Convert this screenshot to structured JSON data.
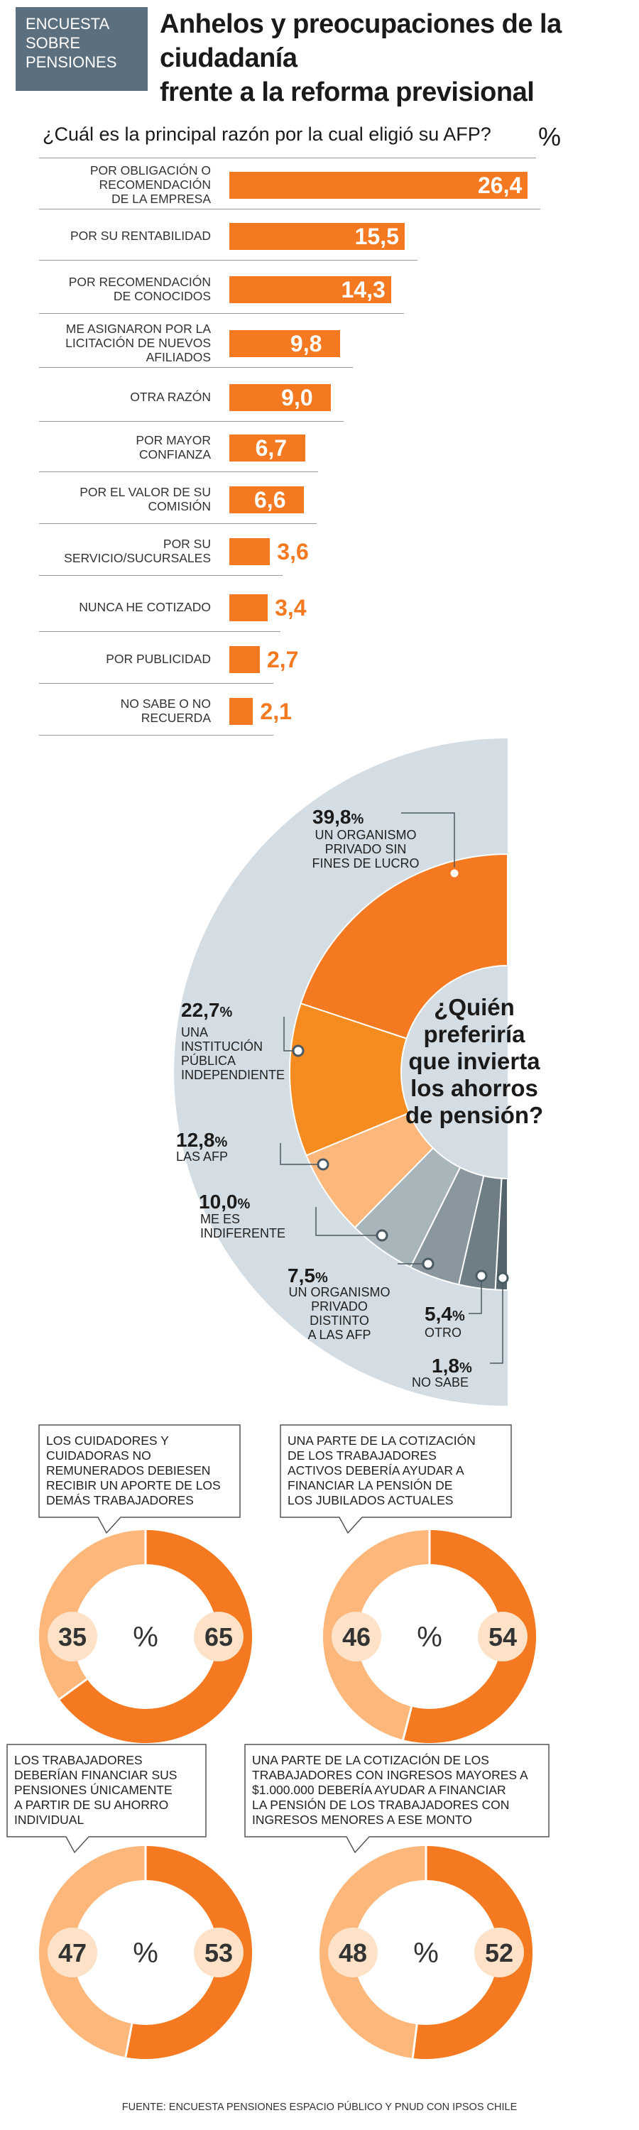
{
  "header": {
    "tag_lines": [
      "ENCUESTA",
      "SOBRE",
      "PENSIONES"
    ],
    "title_lines": [
      "Anhelos y preocupaciones de la ciudadanía",
      "frente a la reforma previsional"
    ]
  },
  "colors": {
    "orange": "#f47920",
    "light_orange": "#fdb77a",
    "mid_orange": "#f68b1f",
    "gray_blue": "#d3dde3",
    "slate": "#5c6f7e"
  },
  "chart_data": [
    {
      "type": "bar",
      "title": "¿Cuál es la principal razón por la cual eligió su AFP?",
      "unit": "%",
      "categories": [
        [
          "POR OBLIGACIÓN O",
          "RECOMENDACIÓN",
          "DE LA EMPRESA"
        ],
        [
          "POR SU RENTABILIDAD"
        ],
        [
          "POR RECOMENDACIÓN",
          "DE CONOCIDOS"
        ],
        [
          "ME ASIGNARON POR LA",
          "LICITACIÓN DE NUEVOS",
          "AFILIADOS"
        ],
        [
          "OTRA RAZÓN"
        ],
        [
          "POR MAYOR",
          "CONFIANZA"
        ],
        [
          "POR EL VALOR DE SU",
          "COMISIÓN"
        ],
        [
          "POR SU",
          "SERVICIO/SUCURSALES"
        ],
        [
          "NUNCA HE COTIZADO"
        ],
        [
          "POR PUBLICIDAD"
        ],
        [
          "NO SABE O NO",
          "RECUERDA"
        ]
      ],
      "values": [
        26.4,
        15.5,
        14.3,
        9.8,
        9.0,
        6.7,
        6.6,
        3.6,
        3.4,
        2.7,
        2.1
      ],
      "value_labels": [
        "26,4",
        "15,5",
        "14,3",
        "9,8",
        "9,0",
        "6,7",
        "6,6",
        "3,6",
        "3,4",
        "2,7",
        "2,1"
      ]
    },
    {
      "type": "pie",
      "title": "¿Quién preferiría que invierta los ahorros de pensión?",
      "title_lines": [
        "¿Quién",
        "preferiría",
        "que invierta",
        "los ahorros",
        "de pensión?"
      ],
      "slices": [
        {
          "value": 39.8,
          "pct_label": "39,8",
          "label_lines": [
            "UN ORGANISMO",
            "PRIVADO SIN",
            "FINES DE LUCRO"
          ],
          "color": "#f47920"
        },
        {
          "value": 22.7,
          "pct_label": "22,7",
          "label_lines": [
            "UNA",
            "INSTITUCIÓN",
            "PÚBLICA",
            "INDEPENDIENTE"
          ],
          "color": "#f68b1f"
        },
        {
          "value": 12.8,
          "pct_label": "12,8",
          "label_lines": [
            "LAS AFP"
          ],
          "color": "#fdb77a"
        },
        {
          "value": 10.0,
          "pct_label": "10,0",
          "label_lines": [
            "ME ES",
            "INDIFERENTE"
          ],
          "color": "#a8b5bb"
        },
        {
          "value": 7.5,
          "pct_label": "7,5",
          "label_lines": [
            "UN ORGANISMO",
            "PRIVADO",
            "DISTINTO",
            "A LAS AFP"
          ],
          "color": "#8a979e"
        },
        {
          "value": 5.4,
          "pct_label": "5,4",
          "label_lines": [
            "OTRO"
          ],
          "color": "#6f7d85"
        },
        {
          "value": 1.8,
          "pct_label": "1,8",
          "label_lines": [
            "NO SABE"
          ],
          "color": "#56646b"
        }
      ]
    },
    {
      "type": "pie",
      "statement_lines": [
        "LOS CUIDADORES Y",
        "CUIDADORAS NO",
        "REMUNERADOS DEBIESEN",
        "RECIBIR UN APORTE DE LOS",
        "DEMÁS TRABAJADORES"
      ],
      "agree": 65,
      "disagree": 35,
      "unit": "%"
    },
    {
      "type": "pie",
      "statement_lines": [
        "UNA PARTE DE LA COTIZACIÓN",
        "DE LOS TRABAJADORES",
        "ACTIVOS DEBERÍA AYUDAR A",
        "FINANCIAR LA PENSIÓN DE",
        "LOS JUBILADOS ACTUALES"
      ],
      "agree": 54,
      "disagree": 46,
      "unit": "%"
    },
    {
      "type": "pie",
      "statement_lines": [
        "LOS TRABAJADORES",
        "DEBERÍAN FINANCIAR SUS",
        "PENSIONES ÚNICAMENTE",
        "A PARTIR DE SU AHORRO",
        "INDIVIDUAL"
      ],
      "agree": 53,
      "disagree": 47,
      "unit": "%"
    },
    {
      "type": "pie",
      "statement_lines": [
        "UNA PARTE DE LA COTIZACIÓN DE LOS",
        "TRABAJADORES CON INGRESOS MAYORES A",
        "$1.000.000 DEBERÍA AYUDAR A FINANCIAR",
        "LA PENSIÓN DE LOS TRABAJADORES CON",
        "INGRESOS MENORES A ESE MONTO"
      ],
      "agree": 52,
      "disagree": 48,
      "unit": "%"
    }
  ],
  "source": "FUENTE: ENCUESTA PENSIONES ESPACIO PÚBLICO Y PNUD CON IPSOS CHILE"
}
